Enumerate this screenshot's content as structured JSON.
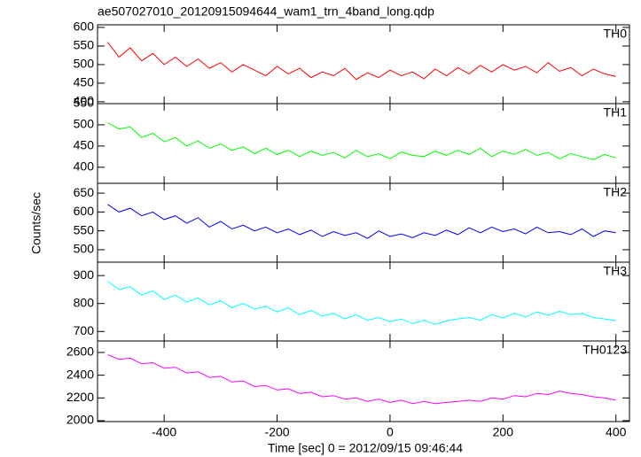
{
  "chart_data": {
    "type": "line",
    "title": "ae507027010_20120915094644_wam1_trn_4band_long.qdp",
    "x_label": "Time [sec] 0 = 2012/09/15 09:46:44",
    "y_label": "Counts/sec",
    "xlim": [
      -518,
      424
    ],
    "xticks": [
      -400,
      -200,
      0,
      200,
      400
    ],
    "x": [
      -500,
      -480,
      -460,
      -440,
      -420,
      -400,
      -380,
      -360,
      -340,
      -320,
      -300,
      -280,
      -260,
      -240,
      -220,
      -200,
      -180,
      -160,
      -140,
      -120,
      -100,
      -80,
      -60,
      -40,
      -20,
      0,
      20,
      40,
      60,
      80,
      100,
      120,
      140,
      160,
      180,
      200,
      220,
      240,
      260,
      280,
      300,
      320,
      340,
      360,
      380,
      400
    ],
    "series": [
      {
        "name": "TH0",
        "color": "#ff0000",
        "ylim": [
          395,
          607
        ],
        "yticks": [
          400,
          450,
          500,
          550,
          600
        ],
        "values": [
          560,
          520,
          545,
          510,
          530,
          500,
          520,
          495,
          515,
          490,
          505,
          480,
          500,
          485,
          470,
          495,
          475,
          490,
          465,
          480,
          470,
          490,
          460,
          478,
          465,
          485,
          470,
          480,
          462,
          488,
          470,
          492,
          475,
          498,
          480,
          500,
          485,
          495,
          478,
          505,
          482,
          492,
          470,
          488,
          475,
          468
        ]
      },
      {
        "name": "TH1",
        "color": "#00ff00",
        "ylim": [
          362,
          550
        ],
        "yticks": [
          400,
          450,
          500,
          550
        ],
        "values": [
          505,
          490,
          495,
          470,
          480,
          460,
          470,
          450,
          462,
          445,
          455,
          440,
          448,
          432,
          445,
          430,
          440,
          425,
          438,
          428,
          435,
          422,
          440,
          425,
          432,
          420,
          436,
          428,
          425,
          438,
          428,
          440,
          430,
          445,
          425,
          438,
          430,
          442,
          428,
          435,
          420,
          432,
          425,
          418,
          430,
          422
        ]
      },
      {
        "name": "TH2",
        "color": "#0000ff",
        "ylim": [
          467,
          676
        ],
        "yticks": [
          500,
          550,
          600,
          650
        ],
        "values": [
          620,
          600,
          610,
          590,
          600,
          580,
          590,
          570,
          585,
          560,
          575,
          555,
          565,
          550,
          560,
          545,
          555,
          540,
          552,
          535,
          548,
          538,
          545,
          530,
          550,
          535,
          542,
          532,
          545,
          538,
          552,
          540,
          558,
          545,
          560,
          548,
          555,
          542,
          560,
          545,
          548,
          540,
          555,
          535,
          550,
          545
        ]
      },
      {
        "name": "TH3",
        "color": "#00ffff",
        "ylim": [
          666,
          948
        ],
        "yticks": [
          700,
          800,
          900
        ],
        "values": [
          880,
          850,
          860,
          830,
          845,
          815,
          830,
          805,
          820,
          795,
          810,
          785,
          800,
          780,
          790,
          770,
          785,
          760,
          775,
          755,
          765,
          745,
          760,
          740,
          750,
          735,
          745,
          728,
          740,
          725,
          738,
          745,
          750,
          740,
          760,
          748,
          765,
          752,
          770,
          758,
          772,
          760,
          765,
          750,
          745,
          738
        ]
      },
      {
        "name": "TH0123",
        "color": "#ff00ff",
        "ylim": [
          1992,
          2701
        ],
        "yticks": [
          2000,
          2200,
          2400,
          2600
        ],
        "values": [
          2580,
          2540,
          2550,
          2500,
          2510,
          2460,
          2470,
          2420,
          2430,
          2380,
          2390,
          2340,
          2350,
          2300,
          2310,
          2270,
          2280,
          2240,
          2250,
          2210,
          2220,
          2190,
          2200,
          2170,
          2190,
          2160,
          2180,
          2150,
          2170,
          2150,
          2160,
          2170,
          2180,
          2170,
          2200,
          2190,
          2220,
          2210,
          2240,
          2230,
          2260,
          2240,
          2230,
          2210,
          2200,
          2180
        ]
      }
    ]
  }
}
